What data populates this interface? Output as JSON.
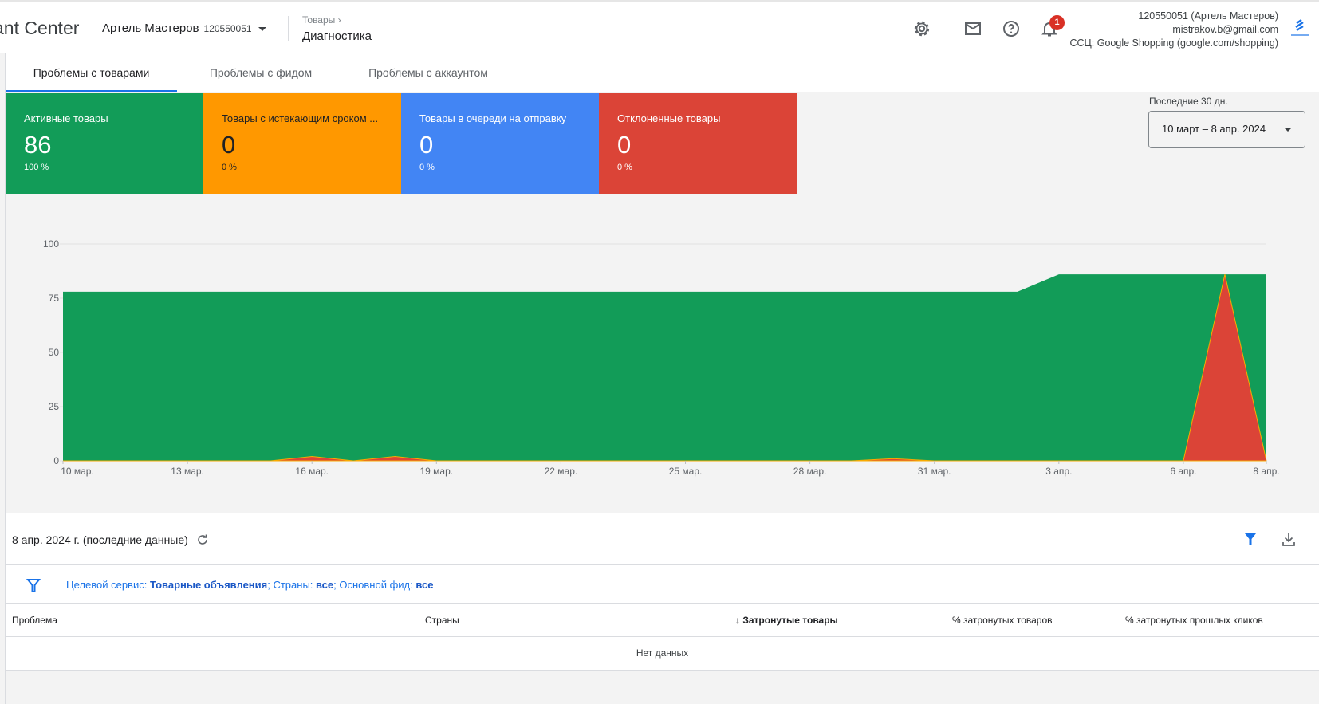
{
  "header": {
    "brand": "ant Center",
    "account_name": "Артель Мастеров",
    "account_id": "120550051",
    "breadcrumb_parent": "Товары",
    "page_title": "Диагностика",
    "notifications_count": "1",
    "user_account": "120550051 (Артель Мастеров)",
    "user_email": "mistrakov.b@gmail.com",
    "css_label": "ССЦ: Google Shopping (google.com/shopping)",
    "icons": [
      "gear-icon",
      "mail-icon",
      "help-icon",
      "bell-icon"
    ]
  },
  "tabs": [
    {
      "label": "Проблемы с товарами",
      "active": true
    },
    {
      "label": "Проблемы с фидом"
    },
    {
      "label": "Проблемы с аккаунтом"
    }
  ],
  "cards": [
    {
      "title": "Активные товары",
      "value": "86",
      "percent": "100 %",
      "color": "#129c58"
    },
    {
      "title": "Товары с истекающим сроком ...",
      "value": "0",
      "percent": "0 %",
      "color": "#ff9800"
    },
    {
      "title": "Товары в очереди на отправку",
      "value": "0",
      "percent": "0 %",
      "color": "#4285f4"
    },
    {
      "title": "Отклоненные товары",
      "value": "0",
      "percent": "0 %",
      "color": "#db4437"
    }
  ],
  "date_range": {
    "label": "Последние 30 дн.",
    "value": "10 март – 8 апр. 2024"
  },
  "chart_data": {
    "type": "area",
    "x": [
      "10 мар.",
      "11 мар.",
      "12 мар.",
      "13 мар.",
      "14 мар.",
      "15 мар.",
      "16 мар.",
      "17 мар.",
      "18 мар.",
      "19 мар.",
      "20 мар.",
      "21 мар.",
      "22 мар.",
      "23 мар.",
      "24 мар.",
      "25 мар.",
      "26 мар.",
      "27 мар.",
      "28 мар.",
      "29 мар.",
      "30 мар.",
      "31 мар.",
      "1 апр.",
      "2 апр.",
      "3 апр.",
      "4 апр.",
      "5 апр.",
      "6 апр.",
      "7 апр.",
      "8 апр."
    ],
    "x_ticks": [
      "10 мар.",
      "13 мар.",
      "16 мар.",
      "19 мар.",
      "22 мар.",
      "25 мар.",
      "28 мар.",
      "31 мар.",
      "3 апр.",
      "6 апр.",
      "8 апр."
    ],
    "y_ticks": [
      "0",
      "25",
      "50",
      "75",
      "100"
    ],
    "ylim": [
      0,
      100
    ],
    "grid": true,
    "series": [
      {
        "key": "active",
        "color": "#129c58",
        "values": [
          78,
          78,
          78,
          78,
          78,
          78,
          78,
          78,
          78,
          78,
          78,
          78,
          78,
          78,
          78,
          78,
          78,
          78,
          78,
          78,
          78,
          78,
          78,
          78,
          86,
          86,
          86,
          86,
          86,
          86
        ]
      },
      {
        "key": "disapproved",
        "color": "#db4437",
        "values": [
          0,
          0,
          0,
          0,
          0,
          0,
          2,
          0,
          2,
          0,
          0,
          0,
          0,
          0,
          0,
          0,
          0,
          0,
          0,
          0,
          1,
          0,
          0,
          0,
          0,
          0,
          0,
          0,
          86,
          0
        ]
      }
    ]
  },
  "issues": {
    "date_label": "8 апр. 2024 г. (последние данные)",
    "filter": {
      "k1": "Целевой сервис: ",
      "v1": "Товарные объявления",
      "k2": "; Страны: ",
      "v2": "все",
      "k3": "; Основной фид: ",
      "v3": "все"
    },
    "columns": [
      "Проблема",
      "Страны",
      "Затронутые товары",
      "% затронутых товаров",
      "% затронутых прошлых кликов"
    ],
    "empty": "Нет данных"
  }
}
